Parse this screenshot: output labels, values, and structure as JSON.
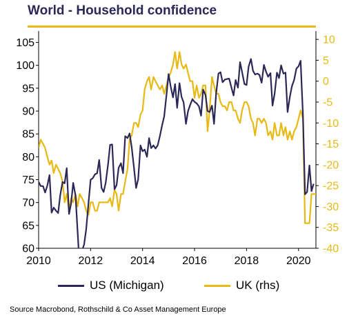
{
  "chart_data": {
    "type": "line",
    "title": "World - Household confidence",
    "x_ticks": [
      "2010",
      "2012",
      "2014",
      "2016",
      "2018",
      "2020"
    ],
    "xlim": [
      2010,
      2020.67
    ],
    "left_axis": {
      "ticks": [
        "60",
        "65",
        "70",
        "75",
        "80",
        "85",
        "90",
        "95",
        "100",
        "105"
      ],
      "ylim": [
        60,
        107.5
      ]
    },
    "right_axis": {
      "ticks": [
        "-40",
        "-35",
        "-30",
        "-25",
        "-20",
        "-15",
        "-10",
        "-5",
        "0",
        "5",
        "10"
      ],
      "ylim": [
        -40,
        12
      ]
    },
    "colors": {
      "US": "#2b2757",
      "UK": "#e8b913"
    },
    "legend_position": "bottom",
    "series": [
      {
        "name": "US (Michigan)",
        "axis": "left",
        "x": [
          2010.0,
          2010.08,
          2010.17,
          2010.25,
          2010.33,
          2010.42,
          2010.5,
          2010.58,
          2010.67,
          2010.75,
          2010.83,
          2010.92,
          2011.0,
          2011.08,
          2011.17,
          2011.25,
          2011.33,
          2011.42,
          2011.5,
          2011.58,
          2011.67,
          2011.75,
          2011.83,
          2011.92,
          2012.0,
          2012.08,
          2012.17,
          2012.25,
          2012.33,
          2012.42,
          2012.5,
          2012.58,
          2012.67,
          2012.75,
          2012.83,
          2012.92,
          2013.0,
          2013.08,
          2013.17,
          2013.25,
          2013.33,
          2013.42,
          2013.5,
          2013.58,
          2013.67,
          2013.75,
          2013.83,
          2013.92,
          2014.0,
          2014.08,
          2014.17,
          2014.25,
          2014.33,
          2014.42,
          2014.5,
          2014.58,
          2014.67,
          2014.75,
          2014.83,
          2014.92,
          2015.0,
          2015.08,
          2015.17,
          2015.25,
          2015.33,
          2015.42,
          2015.5,
          2015.58,
          2015.67,
          2015.75,
          2015.83,
          2015.92,
          2016.0,
          2016.08,
          2016.17,
          2016.25,
          2016.33,
          2016.42,
          2016.5,
          2016.58,
          2016.67,
          2016.75,
          2016.83,
          2016.92,
          2017.0,
          2017.08,
          2017.17,
          2017.25,
          2017.33,
          2017.42,
          2017.5,
          2017.58,
          2017.67,
          2017.75,
          2017.83,
          2017.92,
          2018.0,
          2018.08,
          2018.17,
          2018.25,
          2018.33,
          2018.42,
          2018.5,
          2018.58,
          2018.67,
          2018.75,
          2018.83,
          2018.92,
          2019.0,
          2019.08,
          2019.17,
          2019.25,
          2019.33,
          2019.42,
          2019.5,
          2019.58,
          2019.67,
          2019.75,
          2019.83,
          2019.92,
          2020.0,
          2020.08,
          2020.17,
          2020.25,
          2020.33,
          2020.42,
          2020.5,
          2020.58
        ],
        "values": [
          74.5,
          73.6,
          73.6,
          72.2,
          73.6,
          76.0,
          67.8,
          68.9,
          68.2,
          67.7,
          71.6,
          74.5,
          74.2,
          77.5,
          67.5,
          69.8,
          74.3,
          71.5,
          63.7,
          55.7,
          59.5,
          60.8,
          64.1,
          69.9,
          75.0,
          75.3,
          76.2,
          76.4,
          79.3,
          73.2,
          72.3,
          74.3,
          78.3,
          82.6,
          82.7,
          72.9,
          73.8,
          77.6,
          78.6,
          76.4,
          84.5,
          84.1,
          85.1,
          82.1,
          77.5,
          73.2,
          75.1,
          82.5,
          81.2,
          81.6,
          80.0,
          84.1,
          81.9,
          82.5,
          81.8,
          82.5,
          84.6,
          86.9,
          88.8,
          93.6,
          98.1,
          95.4,
          93.0,
          95.9,
          90.7,
          96.1,
          93.1,
          91.9,
          87.2,
          90.0,
          91.3,
          92.6,
          92.0,
          91.7,
          91.0,
          89.0,
          94.7,
          93.5,
          90.0,
          89.8,
          91.2,
          87.2,
          93.8,
          98.2,
          98.5,
          96.3,
          96.9,
          97.0,
          97.1,
          95.1,
          93.4,
          96.8,
          95.1,
          100.7,
          98.5,
          95.9,
          95.7,
          99.7,
          101.4,
          98.8,
          98.0,
          98.2,
          97.9,
          96.2,
          100.1,
          98.6,
          97.5,
          98.3,
          91.2,
          93.8,
          98.4,
          97.2,
          100.0,
          98.2,
          98.4,
          89.8,
          93.2,
          95.5,
          96.8,
          99.3,
          99.8,
          101.0,
          89.1,
          71.8,
          72.3,
          78.1,
          72.5,
          74.1
        ]
      },
      {
        "name": "UK (rhs)",
        "axis": "right",
        "x": [
          2010.0,
          2010.08,
          2010.17,
          2010.25,
          2010.33,
          2010.42,
          2010.5,
          2010.58,
          2010.67,
          2010.75,
          2010.83,
          2010.92,
          2011.0,
          2011.08,
          2011.17,
          2011.25,
          2011.33,
          2011.42,
          2011.5,
          2011.58,
          2011.67,
          2011.75,
          2011.83,
          2011.92,
          2012.0,
          2012.08,
          2012.17,
          2012.25,
          2012.33,
          2012.42,
          2012.5,
          2012.58,
          2012.67,
          2012.75,
          2012.83,
          2012.92,
          2013.0,
          2013.08,
          2013.17,
          2013.25,
          2013.33,
          2013.42,
          2013.5,
          2013.58,
          2013.67,
          2013.75,
          2013.83,
          2013.92,
          2014.0,
          2014.08,
          2014.17,
          2014.25,
          2014.33,
          2014.42,
          2014.5,
          2014.58,
          2014.67,
          2014.75,
          2014.83,
          2014.92,
          2015.0,
          2015.08,
          2015.17,
          2015.25,
          2015.33,
          2015.42,
          2015.5,
          2015.58,
          2015.67,
          2015.75,
          2015.83,
          2015.92,
          2016.0,
          2016.08,
          2016.17,
          2016.25,
          2016.33,
          2016.42,
          2016.5,
          2016.58,
          2016.67,
          2016.75,
          2016.83,
          2016.92,
          2017.0,
          2017.08,
          2017.17,
          2017.25,
          2017.33,
          2017.42,
          2017.5,
          2017.58,
          2017.67,
          2017.75,
          2017.83,
          2017.92,
          2018.0,
          2018.08,
          2018.17,
          2018.25,
          2018.33,
          2018.42,
          2018.5,
          2018.58,
          2018.67,
          2018.75,
          2018.83,
          2018.92,
          2019.0,
          2019.08,
          2019.17,
          2019.25,
          2019.33,
          2019.42,
          2019.5,
          2019.58,
          2019.67,
          2019.75,
          2019.83,
          2019.92,
          2020.0,
          2020.08,
          2020.17,
          2020.25,
          2020.33,
          2020.42,
          2020.5,
          2020.58,
          2020.67
        ],
        "values": [
          -16,
          -14,
          -15,
          -16,
          -18,
          -20,
          -19,
          -22,
          -20,
          -21,
          -22,
          -24,
          -29,
          -27,
          -31,
          -28,
          -29,
          -27,
          -30,
          -27,
          -28,
          -29,
          -31,
          -32,
          -29,
          -29,
          -31,
          -31,
          -29,
          -29,
          -29,
          -29,
          -29,
          -28,
          -30,
          -26,
          -27,
          -31,
          -27,
          -27,
          -24,
          -21,
          -14,
          -13,
          -10,
          -10,
          -11,
          -8,
          -7,
          -2,
          0,
          1,
          -2,
          1,
          0,
          -1,
          -2,
          -1,
          -3,
          -1,
          1,
          2,
          4,
          7,
          3,
          7,
          4,
          3,
          4,
          2,
          0,
          0,
          -4,
          -1,
          -4,
          -3,
          -1,
          -1,
          -12,
          -7,
          1,
          -1,
          -3,
          -3,
          -5,
          -6,
          -6,
          -7,
          -5,
          -5,
          -7,
          -7,
          -9,
          -10,
          -7,
          -5,
          -5,
          -6,
          -9,
          -10,
          -13,
          -9,
          -9,
          -10,
          -9,
          -10,
          -13,
          -12,
          -14,
          -10,
          -13,
          -13,
          -10,
          -13,
          -11,
          -14,
          -12,
          -14,
          -12,
          -11,
          -9,
          -7,
          -9,
          -34,
          -34,
          -34,
          -27,
          -27,
          -27
        ]
      }
    ]
  },
  "source_text": "Source Macrobond, Rothschild & Co Asset Management Europe"
}
